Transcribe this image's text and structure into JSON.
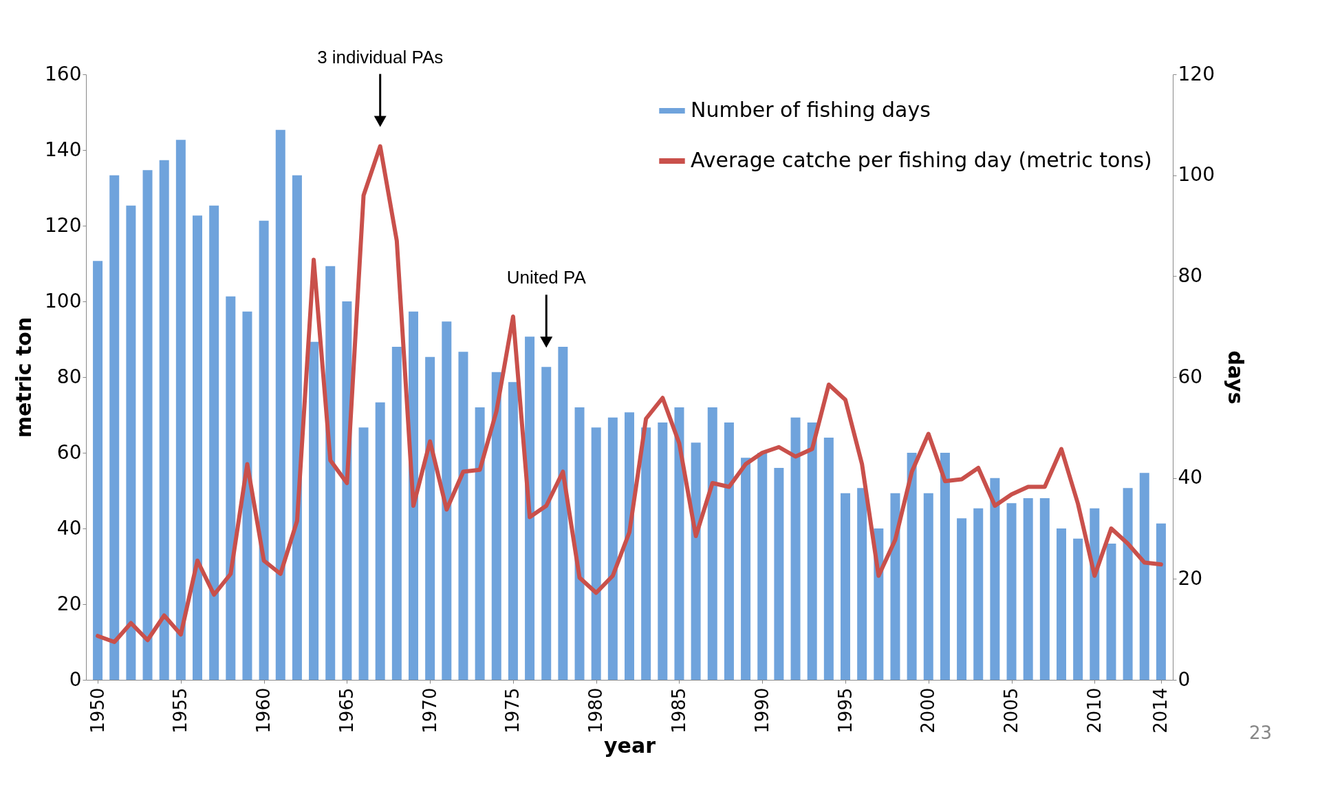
{
  "chart_data": {
    "type": "bar",
    "xlabel": "year",
    "ylabel": "metric ton",
    "y2label": "days",
    "x": [
      1950,
      1951,
      1952,
      1953,
      1954,
      1955,
      1956,
      1957,
      1958,
      1959,
      1960,
      1961,
      1962,
      1963,
      1964,
      1965,
      1966,
      1967,
      1968,
      1969,
      1970,
      1971,
      1972,
      1973,
      1974,
      1975,
      1976,
      1977,
      1978,
      1979,
      1980,
      1981,
      1982,
      1983,
      1984,
      1985,
      1986,
      1987,
      1988,
      1989,
      1990,
      1991,
      1992,
      1993,
      1994,
      1995,
      1996,
      1997,
      1998,
      1999,
      2000,
      2001,
      2002,
      2003,
      2004,
      2005,
      2006,
      2007,
      2008,
      2009,
      2010,
      2011,
      2012,
      2013,
      2014
    ],
    "series": [
      {
        "name": "Number of fishing days",
        "axis": "y2",
        "color": "#6fa3dc",
        "values": [
          83,
          100,
          94,
          101,
          103,
          107,
          92,
          94,
          76,
          73,
          91,
          109,
          100,
          67,
          82,
          75,
          50,
          55,
          66,
          73,
          64,
          71,
          65,
          54,
          61,
          59,
          68,
          62,
          66,
          54,
          50,
          52,
          53,
          50,
          51,
          54,
          47,
          54,
          51,
          44,
          45,
          42,
          52,
          51,
          48,
          37,
          38,
          30,
          37,
          45,
          37,
          45,
          32,
          34,
          40,
          35,
          36,
          36,
          30,
          28,
          34,
          27,
          38,
          41,
          31
        ]
      },
      {
        "name": "Average catche per fishing day (metric tons)",
        "type": "line",
        "color": "#c9504b",
        "values": [
          11.6,
          10,
          15,
          10.5,
          17,
          12,
          31.5,
          22.5,
          28,
          57,
          31.5,
          28,
          42,
          111,
          58,
          52,
          128,
          141,
          116,
          46,
          63,
          45,
          55,
          55.5,
          71,
          96,
          43,
          46,
          55,
          27,
          23,
          27.5,
          39,
          69,
          74.5,
          62.5,
          38,
          52,
          51,
          57,
          60,
          61.5,
          59,
          61,
          78,
          74,
          57,
          27.5,
          37,
          55,
          65,
          52.5,
          53,
          56,
          46,
          49,
          51,
          51,
          61,
          46.5,
          27.5,
          40,
          36,
          31,
          30.5
        ]
      }
    ],
    "xlim": [
      1949.5,
      2014.5
    ],
    "xticks": [
      1950,
      1955,
      1960,
      1965,
      1970,
      1975,
      1980,
      1985,
      1990,
      1995,
      2000,
      2005,
      2010,
      2014
    ],
    "ylim": [
      0,
      160
    ],
    "yticks": [
      0,
      20,
      40,
      60,
      80,
      100,
      120,
      140,
      160
    ],
    "y2lim": [
      0,
      120
    ],
    "y2ticks": [
      0,
      20,
      40,
      60,
      80,
      100,
      120
    ],
    "legend": "top right",
    "grid": false,
    "annotations": [
      {
        "text": "3 individual PAs",
        "x": 1967
      },
      {
        "text": "United PA",
        "x": 1977
      },
      "23"
    ]
  }
}
